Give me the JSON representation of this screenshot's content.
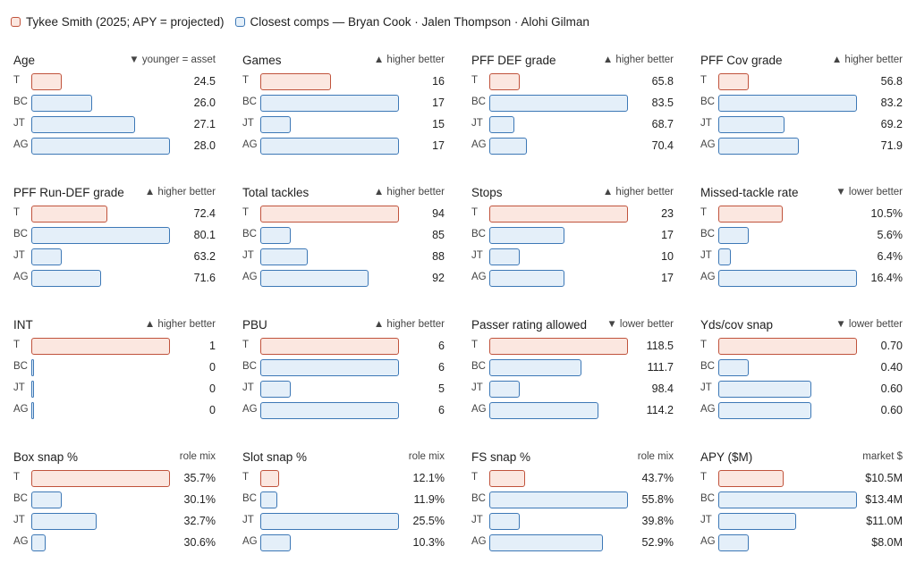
{
  "legend": {
    "target": "Tykee Smith (2025; APY = projected)",
    "comps": "Closest comps — Bryan Cook · Jalen Thompson · Alohi Gilman"
  },
  "colors": {
    "target_fill": "#fbe7e0",
    "target_stroke": "#c0533c",
    "comp_fill": "#e4eff9",
    "comp_stroke": "#3d78b6"
  },
  "chart_data": [
    {
      "type": "bar",
      "title": "Age",
      "note": "▼ younger = asset",
      "categories": [
        "T",
        "BC",
        "JT",
        "AG"
      ],
      "values": [
        24.5,
        26.0,
        27.1,
        28.0
      ],
      "labels": [
        "24.5",
        "26.0",
        "27.1",
        "28.0"
      ]
    },
    {
      "type": "bar",
      "title": "Games",
      "note": "▲ higher better",
      "categories": [
        "T",
        "BC",
        "JT",
        "AG"
      ],
      "values": [
        16,
        17,
        15,
        17
      ],
      "labels": [
        "16",
        "17",
        "15",
        "17"
      ]
    },
    {
      "type": "bar",
      "title": "PFF DEF grade",
      "note": "▲ higher better",
      "categories": [
        "T",
        "BC",
        "JT",
        "AG"
      ],
      "values": [
        65.8,
        83.5,
        68.7,
        70.4
      ],
      "labels": [
        "65.8",
        "83.5",
        "68.7",
        "70.4"
      ]
    },
    {
      "type": "bar",
      "title": "PFF Cov grade",
      "note": "▲ higher better",
      "categories": [
        "T",
        "BC",
        "JT",
        "AG"
      ],
      "values": [
        56.8,
        83.2,
        69.2,
        71.9
      ],
      "labels": [
        "56.8",
        "83.2",
        "69.2",
        "71.9"
      ]
    },
    {
      "type": "bar",
      "title": "PFF Run-DEF grade",
      "note": "▲ higher better",
      "categories": [
        "T",
        "BC",
        "JT",
        "AG"
      ],
      "values": [
        72.4,
        80.1,
        63.2,
        71.6
      ],
      "labels": [
        "72.4",
        "80.1",
        "63.2",
        "71.6"
      ]
    },
    {
      "type": "bar",
      "title": "Total tackles",
      "note": "▲ higher better",
      "categories": [
        "T",
        "BC",
        "JT",
        "AG"
      ],
      "values": [
        94,
        85,
        88,
        92
      ],
      "labels": [
        "94",
        "85",
        "88",
        "92"
      ]
    },
    {
      "type": "bar",
      "title": "Stops",
      "note": "▲ higher better",
      "categories": [
        "T",
        "BC",
        "JT",
        "AG"
      ],
      "values": [
        23,
        17,
        10,
        17
      ],
      "labels": [
        "23",
        "17",
        "10",
        "17"
      ]
    },
    {
      "type": "bar",
      "title": "Missed-tackle rate",
      "note": "▼ lower better",
      "categories": [
        "T",
        "BC",
        "JT",
        "AG"
      ],
      "values": [
        10.5,
        5.6,
        6.4,
        16.4
      ],
      "labels": [
        "10.5%",
        "5.6%",
        "6.4%",
        "16.4%"
      ]
    },
    {
      "type": "bar",
      "title": "INT",
      "note": "▲ higher better",
      "categories": [
        "T",
        "BC",
        "JT",
        "AG"
      ],
      "values": [
        1,
        0,
        0,
        0
      ],
      "labels": [
        "1",
        "0",
        "0",
        "0"
      ]
    },
    {
      "type": "bar",
      "title": "PBU",
      "note": "▲ higher better",
      "categories": [
        "T",
        "BC",
        "JT",
        "AG"
      ],
      "values": [
        6,
        6,
        5,
        6
      ],
      "labels": [
        "6",
        "6",
        "5",
        "6"
      ]
    },
    {
      "type": "bar",
      "title": "Passer rating allowed",
      "note": "▼ lower better",
      "categories": [
        "T",
        "BC",
        "JT",
        "AG"
      ],
      "values": [
        118.5,
        111.7,
        98.4,
        114.2
      ],
      "labels": [
        "118.5",
        "111.7",
        "98.4",
        "114.2"
      ]
    },
    {
      "type": "bar",
      "title": "Yds/cov snap",
      "note": "▼ lower better",
      "categories": [
        "T",
        "BC",
        "JT",
        "AG"
      ],
      "values": [
        0.7,
        0.4,
        0.6,
        0.6
      ],
      "labels": [
        "0.70",
        "0.40",
        "0.60",
        "0.60"
      ]
    },
    {
      "type": "bar",
      "title": "Box snap %",
      "note": "role mix",
      "categories": [
        "T",
        "BC",
        "JT",
        "AG"
      ],
      "values": [
        35.7,
        30.1,
        32.7,
        30.6
      ],
      "labels": [
        "35.7%",
        "30.1%",
        "32.7%",
        "30.6%"
      ]
    },
    {
      "type": "bar",
      "title": "Slot snap %",
      "note": "role mix",
      "categories": [
        "T",
        "BC",
        "JT",
        "AG"
      ],
      "values": [
        12.1,
        11.9,
        25.5,
        10.3
      ],
      "labels": [
        "12.1%",
        "11.9%",
        "25.5%",
        "10.3%"
      ]
    },
    {
      "type": "bar",
      "title": "FS snap %",
      "note": "role mix",
      "categories": [
        "T",
        "BC",
        "JT",
        "AG"
      ],
      "values": [
        43.7,
        55.8,
        39.8,
        52.9
      ],
      "labels": [
        "43.7%",
        "55.8%",
        "39.8%",
        "52.9%"
      ]
    },
    {
      "type": "bar",
      "title": "APY ($M)",
      "note": "market $",
      "categories": [
        "T",
        "BC",
        "JT",
        "AG"
      ],
      "values": [
        10.5,
        13.4,
        11.0,
        8.0
      ],
      "labels": [
        "$10.5M",
        "$13.4M",
        "$11.0M",
        "$8.0M"
      ]
    }
  ]
}
